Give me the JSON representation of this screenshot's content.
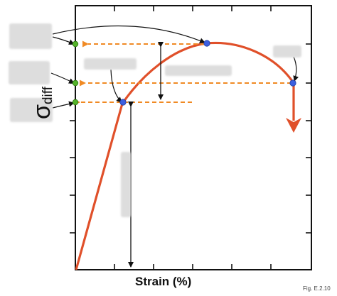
{
  "diagram": {
    "x_axis_label": "Strain (%)",
    "y_axis_symbol": "σ",
    "y_axis_subscript": "diff",
    "figure_caption": "Fig. E.2.10"
  },
  "colors": {
    "curve": "#e0502a",
    "dashed_arrow": "#f08a24",
    "marker_point": "#3c5fe0",
    "axis_marker": "#54b22a",
    "label_mask": "#dddddd"
  },
  "redacted_label_boxes": 7
}
